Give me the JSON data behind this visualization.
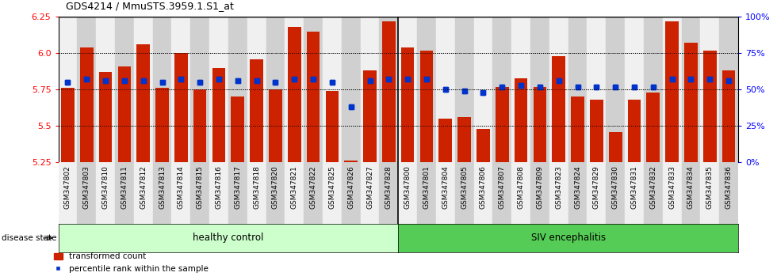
{
  "title": "GDS4214 / MmuSTS.3959.1.S1_at",
  "samples": [
    "GSM347802",
    "GSM347803",
    "GSM347810",
    "GSM347811",
    "GSM347812",
    "GSM347813",
    "GSM347814",
    "GSM347815",
    "GSM347816",
    "GSM347817",
    "GSM347818",
    "GSM347820",
    "GSM347821",
    "GSM347822",
    "GSM347825",
    "GSM347826",
    "GSM347827",
    "GSM347828",
    "GSM347800",
    "GSM347801",
    "GSM347804",
    "GSM347805",
    "GSM347806",
    "GSM347807",
    "GSM347808",
    "GSM347809",
    "GSM347823",
    "GSM347824",
    "GSM347829",
    "GSM347830",
    "GSM347831",
    "GSM347832",
    "GSM347833",
    "GSM347834",
    "GSM347835",
    "GSM347836"
  ],
  "bar_values": [
    5.76,
    6.04,
    5.87,
    5.91,
    6.06,
    5.76,
    6.0,
    5.75,
    5.9,
    5.7,
    5.96,
    5.75,
    6.18,
    6.15,
    5.74,
    5.26,
    5.88,
    6.22,
    6.04,
    6.02,
    5.55,
    5.56,
    5.48,
    5.77,
    5.83,
    5.77,
    5.98,
    5.7,
    5.68,
    5.46,
    5.68,
    5.73,
    6.22,
    6.07,
    6.02,
    5.88
  ],
  "percentile_values": [
    55,
    57,
    56,
    56,
    56,
    55,
    57,
    55,
    57,
    56,
    56,
    55,
    57,
    57,
    55,
    38,
    56,
    57,
    57,
    57,
    50,
    49,
    48,
    52,
    53,
    52,
    56,
    52,
    52,
    52,
    52,
    52,
    57,
    57,
    57,
    56
  ],
  "healthy_count": 18,
  "ylim_left": [
    5.25,
    6.25
  ],
  "ylim_right": [
    0,
    100
  ],
  "yticks_left": [
    5.25,
    5.5,
    5.75,
    6.0,
    6.25
  ],
  "yticks_right": [
    0,
    25,
    50,
    75,
    100
  ],
  "ytick_labels_right": [
    "0%",
    "25%",
    "50%",
    "75%",
    "100%"
  ],
  "bar_color": "#cc2200",
  "dot_color": "#0033cc",
  "healthy_color": "#ccffcc",
  "siv_color": "#55cc55",
  "healthy_label": "healthy control",
  "siv_label": "SIV encephalitis",
  "disease_state_label": "disease state",
  "legend_bar_label": "transformed count",
  "legend_dot_label": "percentile rank within the sample"
}
